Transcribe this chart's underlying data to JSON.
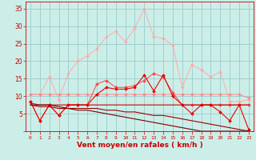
{
  "xlabel": "Vent moyen/en rafales ( km/h )",
  "bg_color": "#cceee8",
  "grid_color": "#99cccc",
  "x_ticks": [
    0,
    1,
    2,
    3,
    4,
    5,
    6,
    7,
    8,
    9,
    10,
    11,
    12,
    13,
    14,
    15,
    16,
    17,
    18,
    19,
    20,
    21,
    22,
    23
  ],
  "ylim": [
    0,
    37
  ],
  "yticks": [
    0,
    5,
    10,
    15,
    20,
    25,
    30,
    35
  ],
  "series": [
    {
      "color": "#ffaaaa",
      "linewidth": 0.7,
      "marker": "D",
      "markersize": 2.0,
      "values": [
        10.5,
        10.5,
        15.5,
        9.0,
        16.5,
        20.0,
        21.5,
        23.5,
        27.0,
        28.5,
        25.5,
        29.5,
        35.0,
        27.0,
        26.5,
        24.5,
        12.5,
        19.0,
        17.5,
        15.5,
        17.0,
        8.5,
        8.5,
        9.0
      ]
    },
    {
      "color": "#ff8888",
      "linewidth": 0.7,
      "marker": "D",
      "markersize": 2.0,
      "values": [
        10.5,
        10.5,
        10.5,
        10.5,
        10.5,
        10.5,
        10.5,
        10.5,
        10.5,
        10.5,
        10.5,
        10.5,
        10.5,
        10.5,
        10.5,
        10.5,
        10.5,
        10.5,
        10.5,
        10.5,
        10.5,
        10.5,
        10.5,
        9.5
      ]
    },
    {
      "color": "#ff4444",
      "linewidth": 0.7,
      "marker": "D",
      "markersize": 2.0,
      "values": [
        8.5,
        3.0,
        7.5,
        4.5,
        7.5,
        7.5,
        7.5,
        13.5,
        14.5,
        12.5,
        12.5,
        13.0,
        14.5,
        16.5,
        15.5,
        11.0,
        7.5,
        7.5,
        7.5,
        7.5,
        7.5,
        7.5,
        7.5,
        7.5
      ]
    },
    {
      "color": "#ee0000",
      "linewidth": 0.8,
      "marker": "D",
      "markersize": 2.0,
      "values": [
        8.5,
        3.0,
        7.5,
        4.5,
        7.5,
        7.5,
        7.5,
        10.5,
        12.5,
        12.0,
        12.0,
        12.5,
        16.0,
        11.5,
        16.0,
        10.0,
        7.5,
        5.0,
        7.5,
        7.5,
        5.5,
        3.0,
        7.5,
        0.5
      ]
    },
    {
      "color": "#cc0000",
      "linewidth": 0.8,
      "marker": null,
      "markersize": 0,
      "values": [
        8.0,
        7.5,
        7.5,
        7.5,
        7.5,
        7.5,
        7.5,
        7.5,
        7.5,
        7.5,
        7.5,
        7.5,
        7.5,
        7.5,
        7.5,
        7.5,
        7.5,
        7.5,
        7.5,
        7.5,
        7.5,
        7.5,
        7.5,
        7.5
      ]
    },
    {
      "color": "#990000",
      "linewidth": 0.8,
      "marker": null,
      "markersize": 0,
      "values": [
        7.5,
        7.0,
        7.0,
        6.5,
        6.5,
        6.5,
        6.5,
        6.5,
        6.0,
        6.0,
        5.5,
        5.5,
        5.0,
        4.5,
        4.5,
        4.0,
        3.5,
        3.0,
        2.5,
        2.0,
        1.5,
        1.0,
        0.5,
        0.0
      ]
    },
    {
      "color": "#770000",
      "linewidth": 0.8,
      "marker": null,
      "markersize": 0,
      "values": [
        7.5,
        7.5,
        7.5,
        7.0,
        6.5,
        6.0,
        6.0,
        5.5,
        5.0,
        4.5,
        4.0,
        3.5,
        3.0,
        2.5,
        2.0,
        1.5,
        1.0,
        0.5,
        0.0,
        0.0,
        0.0,
        0.0,
        0.0,
        0.0
      ]
    }
  ]
}
